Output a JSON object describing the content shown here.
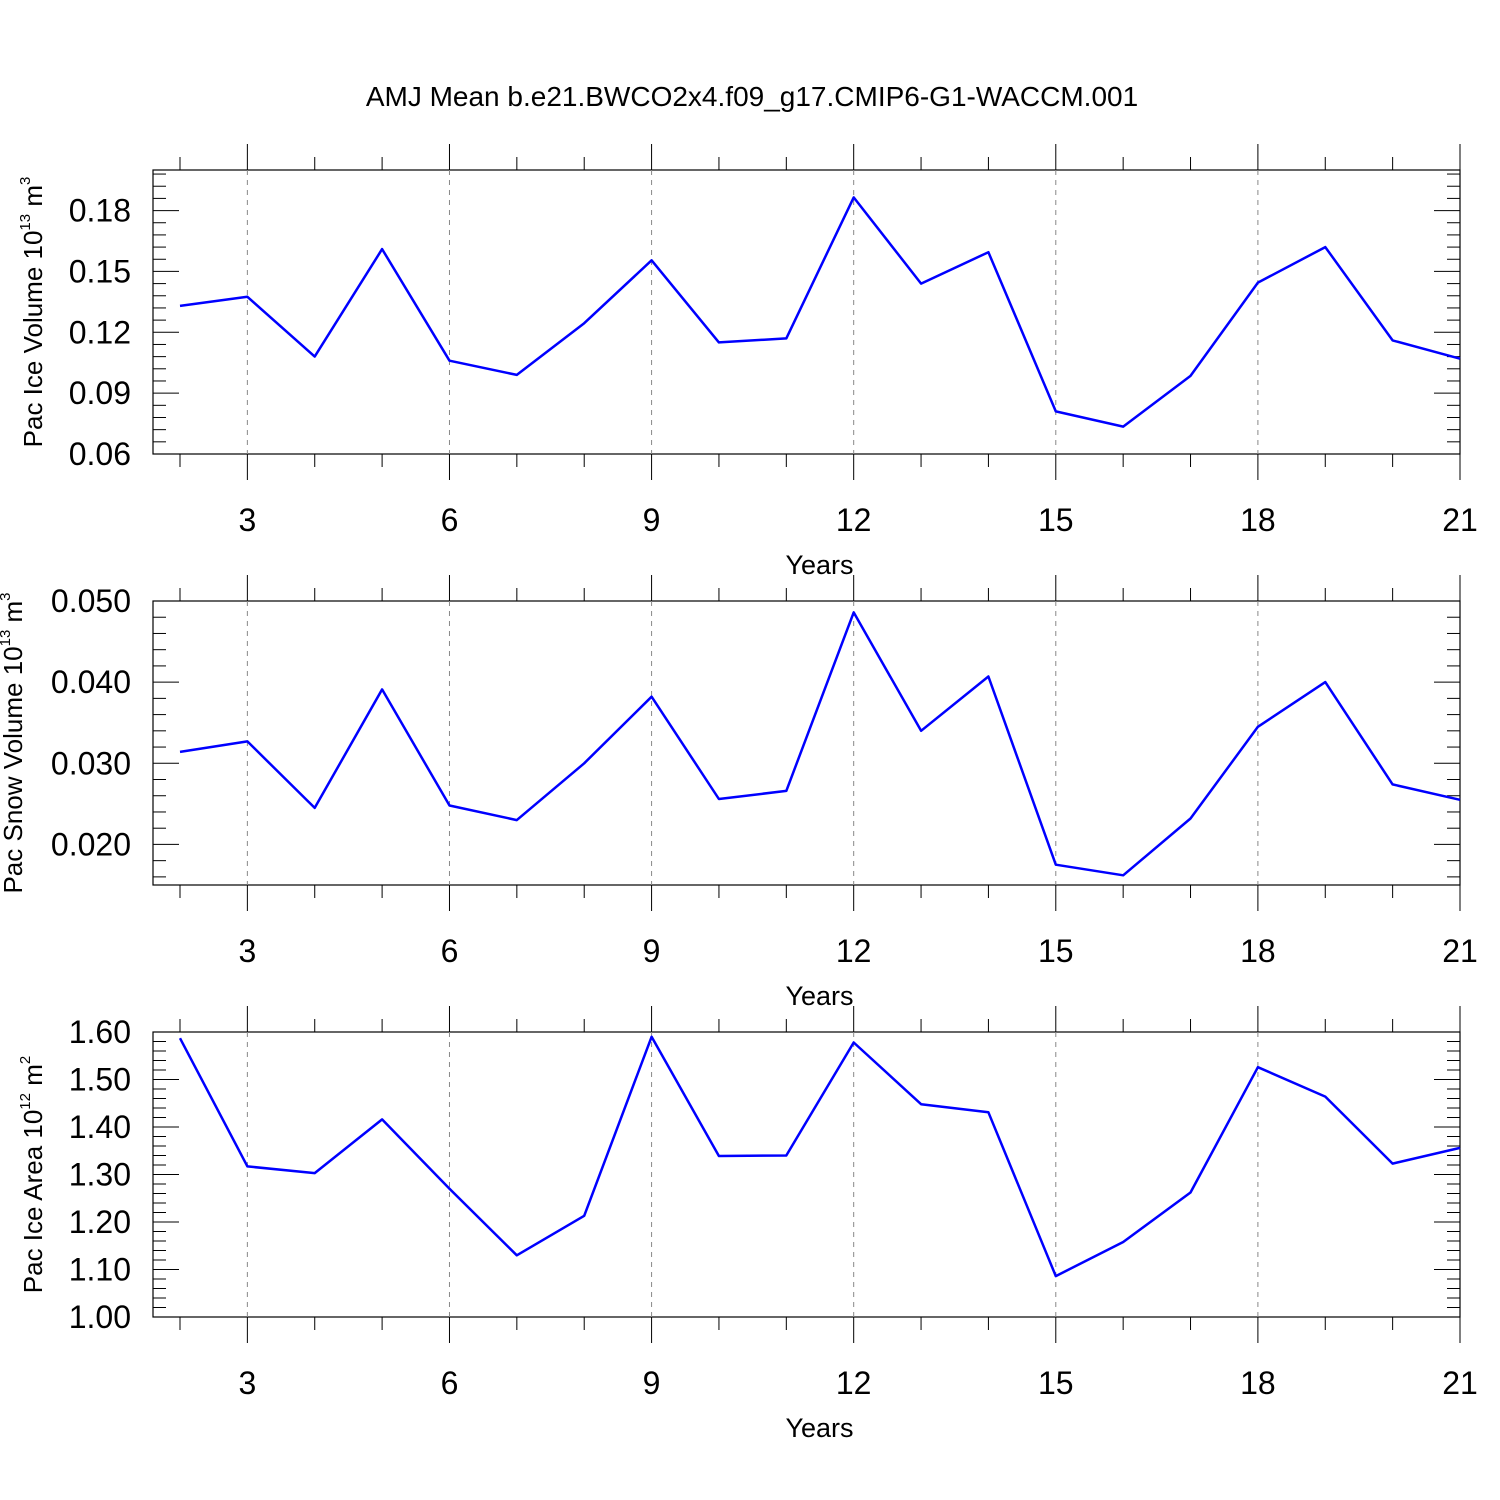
{
  "figure": {
    "title": "AMJ Mean b.e21.BWCO2x4.f09_g17.CMIP6-G1-WACCM.001",
    "line_color": "#0000ff",
    "grid_color": "#888888"
  },
  "chart_data": [
    {
      "type": "line",
      "xlabel": "Years",
      "ylabel": {
        "text": "Pac Ice Volume 10",
        "sup": "13",
        "unit": " m",
        "unit_sup": "3"
      },
      "xlim": [
        2,
        21
      ],
      "ylim": [
        0.06,
        0.2
      ],
      "x_ticks": [
        3,
        6,
        9,
        12,
        15,
        18,
        21
      ],
      "y_ticks": [
        "0.06",
        "0.09",
        "0.12",
        "0.15",
        "0.18"
      ],
      "grid": "vertical dashed at major x ticks",
      "series": [
        {
          "x": [
            2,
            3,
            4,
            5,
            6,
            7,
            8,
            9,
            10,
            11,
            12,
            13,
            14,
            15,
            16,
            17,
            18,
            19,
            20,
            21
          ],
          "y": [
            0.133,
            0.1375,
            0.108,
            0.161,
            0.106,
            0.099,
            0.1245,
            0.1555,
            0.115,
            0.117,
            0.1865,
            0.144,
            0.1595,
            0.081,
            0.0735,
            0.0985,
            0.1445,
            0.162,
            0.116,
            0.107
          ]
        }
      ]
    },
    {
      "type": "line",
      "xlabel": "Years",
      "ylabel": {
        "text": "Pac Snow Volume 10",
        "sup": "13",
        "unit": " m",
        "unit_sup": "3"
      },
      "xlim": [
        2,
        21
      ],
      "ylim": [
        0.015,
        0.05
      ],
      "x_ticks": [
        3,
        6,
        9,
        12,
        15,
        18,
        21
      ],
      "y_ticks": [
        "0.020",
        "0.030",
        "0.040",
        "0.050"
      ],
      "grid": "vertical dashed at major x ticks",
      "series": [
        {
          "x": [
            2,
            3,
            4,
            5,
            6,
            7,
            8,
            9,
            10,
            11,
            12,
            13,
            14,
            15,
            16,
            17,
            18,
            19,
            20,
            21
          ],
          "y": [
            0.0314,
            0.0327,
            0.0245,
            0.0391,
            0.0248,
            0.023,
            0.03,
            0.0382,
            0.0256,
            0.0266,
            0.0486,
            0.034,
            0.0407,
            0.0175,
            0.0162,
            0.0232,
            0.0345,
            0.04,
            0.0274,
            0.0255
          ]
        }
      ]
    },
    {
      "type": "line",
      "xlabel": "Years",
      "ylabel": {
        "text": "Pac Ice Area 10",
        "sup": "12",
        "unit": " m",
        "unit_sup": "2"
      },
      "xlim": [
        2,
        21
      ],
      "ylim": [
        1.0,
        1.6
      ],
      "x_ticks": [
        3,
        6,
        9,
        12,
        15,
        18,
        21
      ],
      "y_ticks": [
        "1.00",
        "1.10",
        "1.20",
        "1.30",
        "1.40",
        "1.50",
        "1.60"
      ],
      "grid": "vertical dashed at major x ticks",
      "series": [
        {
          "x": [
            2,
            3,
            4,
            5,
            6,
            7,
            8,
            9,
            10,
            11,
            12,
            13,
            14,
            15,
            16,
            17,
            18,
            19,
            20,
            21
          ],
          "y": [
            1.587,
            1.317,
            1.303,
            1.416,
            1.27,
            1.13,
            1.213,
            1.59,
            1.339,
            1.34,
            1.578,
            1.448,
            1.431,
            1.086,
            1.158,
            1.262,
            1.526,
            1.464,
            1.323,
            1.356
          ]
        }
      ]
    }
  ]
}
